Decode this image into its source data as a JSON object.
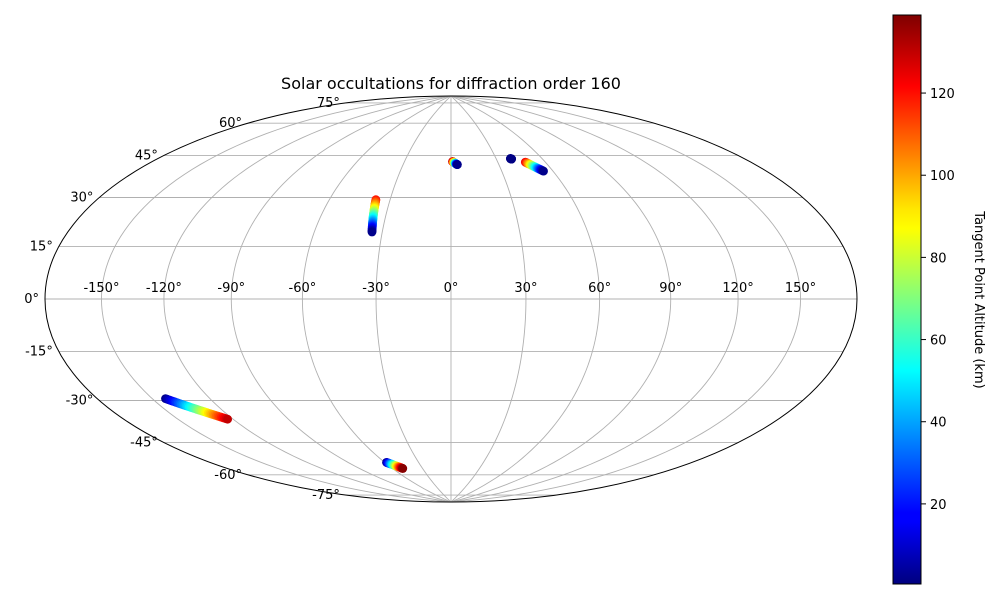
{
  "chart_data": {
    "type": "scatter",
    "projection": "hammer",
    "title": "Solar occultations for diffraction order 160",
    "xlabel": "",
    "ylabel": "",
    "grid": true,
    "lon_ticks": [
      -150,
      -120,
      -90,
      -60,
      -30,
      0,
      30,
      60,
      90,
      120,
      150
    ],
    "lon_tick_labels": [
      "-150°",
      "-120°",
      "-90°",
      "-60°",
      "-30°",
      "0°",
      "30°",
      "60°",
      "90°",
      "120°",
      "150°"
    ],
    "lat_ticks": [
      75,
      60,
      45,
      30,
      15,
      0,
      -15,
      -30,
      -45,
      -60,
      -75
    ],
    "lat_tick_labels": [
      "75°",
      "60°",
      "45°",
      "30°",
      "15°",
      "0°",
      "-15°",
      "-30°",
      "-45°",
      "-60°",
      "-75°"
    ],
    "colormap": "jet",
    "colorbar": {
      "label": "Tangent Point Altitude (km)",
      "min": 0.5,
      "max": 139,
      "ticks": [
        20,
        40,
        60,
        80,
        100,
        120
      ],
      "tick_labels": [
        "20",
        "40",
        "60",
        "80",
        "100",
        "120"
      ],
      "placement": "right"
    },
    "series": [
      {
        "start": [
          1,
          57.2
        ],
        "end": [
          4,
          55.8
        ],
        "alt_start": 135,
        "alt_end": 2
      },
      {
        "start": [
          39.5,
          57.9
        ],
        "end": [
          40,
          57.7
        ],
        "alt_start": 2,
        "alt_end": 1
      },
      {
        "start": [
          47.5,
          56.0
        ],
        "end": [
          54.5,
          51.7
        ],
        "alt_start": 125,
        "alt_end": 2
      },
      {
        "start": [
          -37,
          40.0
        ],
        "end": [
          -34.5,
          26.7
        ],
        "alt_start": 120,
        "alt_end": 2
      },
      {
        "start": [
          -143,
          -33.5
        ],
        "end": [
          -123,
          -43.4
        ],
        "alt_start": 2,
        "alt_end": 130
      },
      {
        "start": [
          -58.5,
          -68.0
        ],
        "end": [
          -50,
          -71.4
        ],
        "alt_start": 2,
        "alt_end": 138
      }
    ]
  }
}
